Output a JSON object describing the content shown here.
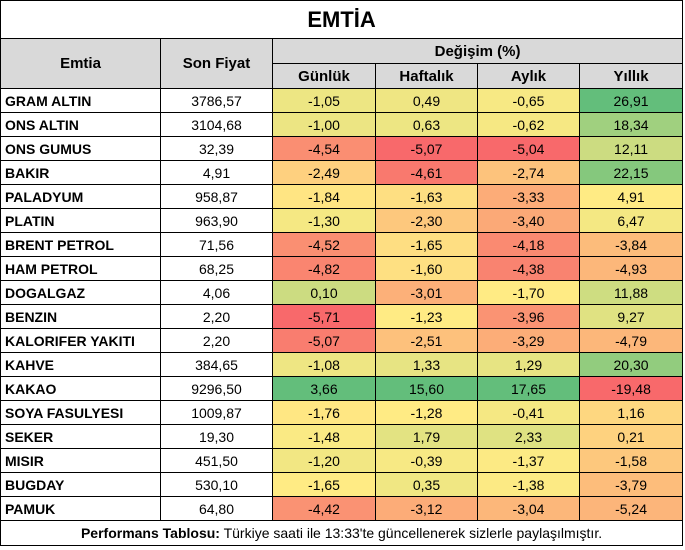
{
  "title": "EMTİA",
  "headers": {
    "emtia": "Emtia",
    "son_fiyat": "Son Fiyat",
    "degisim": "Değişim (%)",
    "gunluk": "Günlük",
    "haftalik": "Haftalık",
    "aylik": "Aylık",
    "yillik": "Yıllık"
  },
  "rows": [
    {
      "name": "GRAM ALTIN",
      "price": "3786,57",
      "gunluk": "-1,05",
      "haftalik": "0,49",
      "aylik": "-0,65",
      "yillik": "26,91"
    },
    {
      "name": "ONS ALTIN",
      "price": "3104,68",
      "gunluk": "-1,00",
      "haftalik": "0,63",
      "aylik": "-0,62",
      "yillik": "18,34"
    },
    {
      "name": "ONS GUMUS",
      "price": "32,39",
      "gunluk": "-4,54",
      "haftalik": "-5,07",
      "aylik": "-5,04",
      "yillik": "12,11"
    },
    {
      "name": "BAKIR",
      "price": "4,91",
      "gunluk": "-2,49",
      "haftalik": "-4,61",
      "aylik": "-2,74",
      "yillik": "22,15"
    },
    {
      "name": "PALADYUM",
      "price": "958,87",
      "gunluk": "-1,84",
      "haftalik": "-1,63",
      "aylik": "-3,33",
      "yillik": "4,91"
    },
    {
      "name": "PLATIN",
      "price": "963,90",
      "gunluk": "-1,30",
      "haftalik": "-2,30",
      "aylik": "-3,40",
      "yillik": "6,47"
    },
    {
      "name": "BRENT PETROL",
      "price": "71,56",
      "gunluk": "-4,52",
      "haftalik": "-1,65",
      "aylik": "-4,18",
      "yillik": "-3,84"
    },
    {
      "name": "HAM PETROL",
      "price": "68,25",
      "gunluk": "-4,82",
      "haftalik": "-1,60",
      "aylik": "-4,38",
      "yillik": "-4,93"
    },
    {
      "name": "DOGALGAZ",
      "price": "4,06",
      "gunluk": "0,10",
      "haftalik": "-3,01",
      "aylik": "-1,70",
      "yillik": "11,88"
    },
    {
      "name": "BENZIN",
      "price": "2,20",
      "gunluk": "-5,71",
      "haftalik": "-1,23",
      "aylik": "-3,96",
      "yillik": "9,27"
    },
    {
      "name": "KALORIFER YAKITI",
      "price": "2,20",
      "gunluk": "-5,07",
      "haftalik": "-2,51",
      "aylik": "-3,29",
      "yillik": "-4,79"
    },
    {
      "name": "KAHVE",
      "price": "384,65",
      "gunluk": "-1,08",
      "haftalik": "1,33",
      "aylik": "1,29",
      "yillik": "20,30"
    },
    {
      "name": "KAKAO",
      "price": "9296,50",
      "gunluk": "3,66",
      "haftalik": "15,60",
      "aylik": "17,65",
      "yillik": "-19,48"
    },
    {
      "name": "SOYA FASULYESI",
      "price": "1009,87",
      "gunluk": "-1,76",
      "haftalik": "-1,28",
      "aylik": "-0,41",
      "yillik": "1,16"
    },
    {
      "name": "SEKER",
      "price": "19,30",
      "gunluk": "-1,48",
      "haftalik": "1,79",
      "aylik": "2,33",
      "yillik": "0,21"
    },
    {
      "name": "MISIR",
      "price": "451,50",
      "gunluk": "-1,20",
      "haftalik": "-0,39",
      "aylik": "-1,37",
      "yillik": "-1,58"
    },
    {
      "name": "BUGDAY",
      "price": "530,10",
      "gunluk": "-1,65",
      "haftalik": "0,35",
      "aylik": "-1,38",
      "yillik": "-3,79"
    },
    {
      "name": "PAMUK",
      "price": "64,80",
      "gunluk": "-4,42",
      "haftalik": "-3,12",
      "aylik": "-3,04",
      "yillik": "-5,24"
    }
  ],
  "footer": {
    "bold": "Performans Tablosu:",
    "text": " Türkiye saati ile 13:33'te güncellenerek sizlerle paylaşılmıştır."
  },
  "colors": {
    "header_bg": "#d9d9d9",
    "scale_red": "#f8696b",
    "scale_yellow": "#ffeb84",
    "scale_green": "#63be7b"
  }
}
